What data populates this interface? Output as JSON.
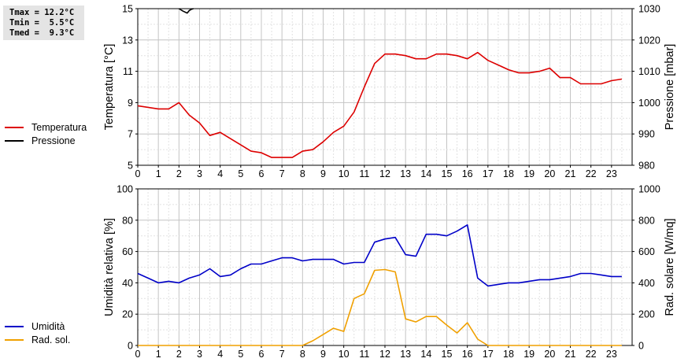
{
  "stats": {
    "tmax": "Tmax = 12.2°C",
    "tmin": "Tmin =  5.5°C",
    "tmed": "Tmed =  9.3°C"
  },
  "legend_top": [
    {
      "label": "Temperatura",
      "color": "#dd0000"
    },
    {
      "label": "Pressione",
      "color": "#000000"
    }
  ],
  "legend_bottom": [
    {
      "label": "Umidità",
      "color": "#0000c8"
    },
    {
      "label": "Rad. sol.",
      "color": "#f0a000"
    }
  ],
  "chart_data": [
    {
      "type": "line",
      "ylabel": "Temperatura [°C]",
      "y2label": "Pressione [mbar]",
      "xlim": [
        0,
        24
      ],
      "ylim": [
        5,
        15
      ],
      "y2lim": [
        980,
        1030
      ],
      "xticks": [
        "0",
        "1",
        "2",
        "3",
        "4",
        "5",
        "6",
        "7",
        "8",
        "9",
        "10",
        "11",
        "12",
        "13",
        "14",
        "15",
        "16",
        "17",
        "18",
        "19",
        "20",
        "21",
        "22",
        "23"
      ],
      "yticks": [
        "5",
        "7",
        "9",
        "11",
        "13",
        "15"
      ],
      "y2ticks": [
        "980",
        "990",
        "1000",
        "1010",
        "1020",
        "1030"
      ],
      "grid": true,
      "series": [
        {
          "name": "Temperatura",
          "color": "#dd0000",
          "axis": "left",
          "x": [
            0,
            0.5,
            1,
            1.5,
            2,
            2.5,
            3,
            3.5,
            4,
            4.5,
            5,
            5.5,
            6,
            6.5,
            7,
            7.5,
            8,
            8.5,
            9,
            9.5,
            10,
            10.5,
            11,
            11.5,
            12,
            12.5,
            13,
            13.5,
            14,
            14.5,
            15,
            15.5,
            16,
            16.5,
            17,
            17.5,
            18,
            18.5,
            19,
            19.5,
            20,
            20.5,
            21,
            21.5,
            22,
            22.5,
            23,
            23.5
          ],
          "values": [
            8.8,
            8.7,
            8.6,
            8.6,
            9.0,
            8.2,
            7.7,
            6.9,
            7.1,
            6.7,
            6.3,
            5.9,
            5.8,
            5.5,
            5.5,
            5.5,
            5.9,
            6.0,
            6.5,
            7.1,
            7.5,
            8.4,
            10.0,
            11.5,
            12.1,
            12.1,
            12.0,
            11.8,
            11.8,
            12.1,
            12.1,
            12.0,
            11.8,
            12.2,
            11.7,
            11.4,
            11.1,
            10.9,
            10.9,
            11.0,
            11.2,
            10.6,
            10.6,
            10.2,
            10.2,
            10.2,
            10.4,
            10.5
          ]
        },
        {
          "name": "Pressione",
          "color": "#000000",
          "axis": "right",
          "x": [
            2,
            2.2,
            2.4,
            2.5,
            2.6,
            2.7
          ],
          "values": [
            1030,
            1029.2,
            1028.6,
            1029.4,
            1029.8,
            1030
          ]
        }
      ]
    },
    {
      "type": "line",
      "ylabel": "Umidità relativa [%]",
      "y2label": "Rad. solare [W/mq]",
      "xlim": [
        0,
        24
      ],
      "ylim": [
        0,
        100
      ],
      "y2lim": [
        0,
        1000
      ],
      "xticks": [
        "0",
        "1",
        "2",
        "3",
        "4",
        "5",
        "6",
        "7",
        "8",
        "9",
        "10",
        "11",
        "12",
        "13",
        "14",
        "15",
        "16",
        "17",
        "18",
        "19",
        "20",
        "21",
        "22",
        "23"
      ],
      "yticks": [
        "0",
        "20",
        "40",
        "60",
        "80",
        "100"
      ],
      "y2ticks": [
        "0",
        "200",
        "400",
        "600",
        "800",
        "1000"
      ],
      "grid": true,
      "series": [
        {
          "name": "Umidità",
          "color": "#0000c8",
          "axis": "left",
          "x": [
            0,
            0.5,
            1,
            1.5,
            2,
            2.5,
            3,
            3.5,
            4,
            4.5,
            5,
            5.5,
            6,
            6.5,
            7,
            7.5,
            8,
            8.5,
            9,
            9.5,
            10,
            10.5,
            11,
            11.5,
            12,
            12.5,
            13,
            13.5,
            14,
            14.5,
            15,
            15.5,
            16,
            16.5,
            17,
            17.5,
            18,
            18.5,
            19,
            19.5,
            20,
            20.5,
            21,
            21.5,
            22,
            22.5,
            23,
            23.5
          ],
          "values": [
            46,
            43,
            40,
            41,
            40,
            43,
            45,
            49,
            44,
            45,
            49,
            52,
            52,
            54,
            56,
            56,
            54,
            55,
            55,
            55,
            52,
            53,
            53,
            66,
            68,
            69,
            58,
            57,
            71,
            71,
            70,
            73,
            77,
            43,
            38,
            39,
            40,
            40,
            41,
            42,
            42,
            43,
            44,
            46,
            46,
            45,
            44,
            44
          ]
        },
        {
          "name": "Rad. sol.",
          "color": "#f0a000",
          "axis": "right",
          "x": [
            0,
            0.5,
            1,
            1.5,
            2,
            2.5,
            3,
            3.5,
            4,
            4.5,
            5,
            5.5,
            6,
            6.5,
            7,
            7.5,
            8,
            8.5,
            9,
            9.5,
            10,
            10.5,
            11,
            11.5,
            12,
            12.5,
            13,
            13.5,
            14,
            14.5,
            15,
            15.5,
            16,
            16.5,
            17,
            17.5,
            18,
            18.5,
            19,
            19.5,
            20,
            20.5,
            21,
            21.5,
            22,
            22.5,
            23,
            23.5
          ],
          "values": [
            0,
            0,
            0,
            0,
            0,
            0,
            0,
            0,
            0,
            0,
            0,
            0,
            0,
            0,
            0,
            0,
            0,
            30,
            70,
            110,
            90,
            300,
            330,
            480,
            485,
            470,
            170,
            150,
            185,
            185,
            130,
            80,
            145,
            40,
            0,
            0,
            0,
            0,
            0,
            0,
            0,
            0,
            0,
            0,
            0,
            0,
            0,
            0
          ]
        }
      ]
    }
  ]
}
